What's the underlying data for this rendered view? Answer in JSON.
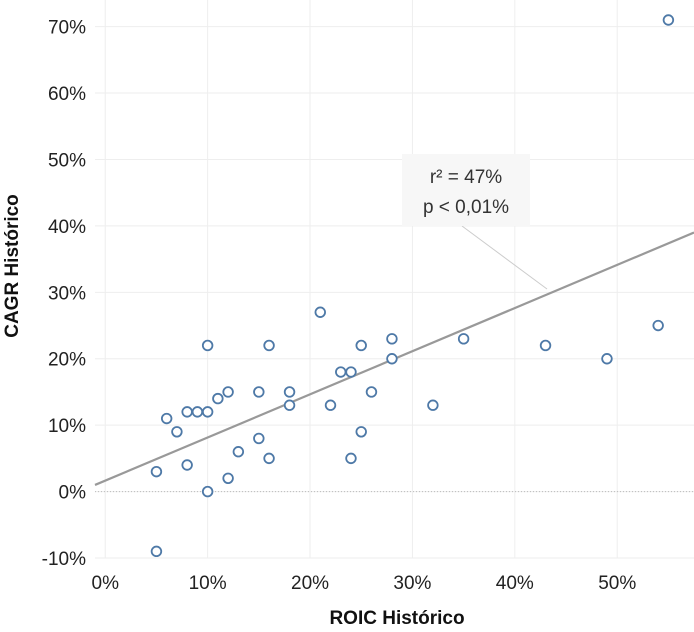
{
  "chart_data": {
    "type": "scatter",
    "xlabel": "ROIC Histórico",
    "ylabel": "CAGR Histórico",
    "xlim": [
      -0.01,
      0.575
    ],
    "ylim": [
      -0.1,
      0.71
    ],
    "grid": true,
    "x_ticks": [
      {
        "value": 0.0,
        "label": "0%"
      },
      {
        "value": 0.1,
        "label": "10%"
      },
      {
        "value": 0.2,
        "label": "20%"
      },
      {
        "value": 0.3,
        "label": "30%"
      },
      {
        "value": 0.4,
        "label": "40%"
      },
      {
        "value": 0.5,
        "label": "50%"
      }
    ],
    "y_ticks": [
      {
        "value": -0.1,
        "label": "-10%"
      },
      {
        "value": 0.0,
        "label": "0%"
      },
      {
        "value": 0.1,
        "label": "10%"
      },
      {
        "value": 0.2,
        "label": "20%"
      },
      {
        "value": 0.3,
        "label": "30%"
      },
      {
        "value": 0.4,
        "label": "40%"
      },
      {
        "value": 0.5,
        "label": "50%"
      },
      {
        "value": 0.6,
        "label": "60%"
      },
      {
        "value": 0.7,
        "label": "70%"
      }
    ],
    "points": [
      {
        "x": 0.05,
        "y": 0.03
      },
      {
        "x": 0.05,
        "y": -0.09
      },
      {
        "x": 0.06,
        "y": 0.11
      },
      {
        "x": 0.07,
        "y": 0.09
      },
      {
        "x": 0.08,
        "y": 0.12
      },
      {
        "x": 0.08,
        "y": 0.04
      },
      {
        "x": 0.09,
        "y": 0.12
      },
      {
        "x": 0.1,
        "y": 0.12
      },
      {
        "x": 0.1,
        "y": 0.22
      },
      {
        "x": 0.1,
        "y": 0.0
      },
      {
        "x": 0.11,
        "y": 0.14
      },
      {
        "x": 0.12,
        "y": 0.15
      },
      {
        "x": 0.12,
        "y": 0.02
      },
      {
        "x": 0.13,
        "y": 0.06
      },
      {
        "x": 0.15,
        "y": 0.15
      },
      {
        "x": 0.15,
        "y": 0.08
      },
      {
        "x": 0.16,
        "y": 0.22
      },
      {
        "x": 0.16,
        "y": 0.05
      },
      {
        "x": 0.18,
        "y": 0.15
      },
      {
        "x": 0.18,
        "y": 0.13
      },
      {
        "x": 0.21,
        "y": 0.27
      },
      {
        "x": 0.22,
        "y": 0.13
      },
      {
        "x": 0.23,
        "y": 0.18
      },
      {
        "x": 0.24,
        "y": 0.18
      },
      {
        "x": 0.24,
        "y": 0.05
      },
      {
        "x": 0.25,
        "y": 0.22
      },
      {
        "x": 0.25,
        "y": 0.09
      },
      {
        "x": 0.26,
        "y": 0.15
      },
      {
        "x": 0.28,
        "y": 0.23
      },
      {
        "x": 0.28,
        "y": 0.2
      },
      {
        "x": 0.32,
        "y": 0.13
      },
      {
        "x": 0.35,
        "y": 0.23
      },
      {
        "x": 0.43,
        "y": 0.22
      },
      {
        "x": 0.49,
        "y": 0.2
      },
      {
        "x": 0.54,
        "y": 0.25
      },
      {
        "x": 0.55,
        "y": 0.71
      }
    ],
    "trend_line": {
      "x": [
        -0.01,
        0.575
      ],
      "y": [
        0.01,
        0.39
      ]
    },
    "annotation": {
      "lines": [
        "r² = 47%",
        "p < 0,01%"
      ]
    },
    "colors": {
      "point": "#4e79a7",
      "trend": "#999999",
      "grid": "#eeeeee",
      "zero_line": "#bbbbbb",
      "annotation_bg": "#f7f7f7",
      "annotation_leader": "#cccccc"
    }
  }
}
